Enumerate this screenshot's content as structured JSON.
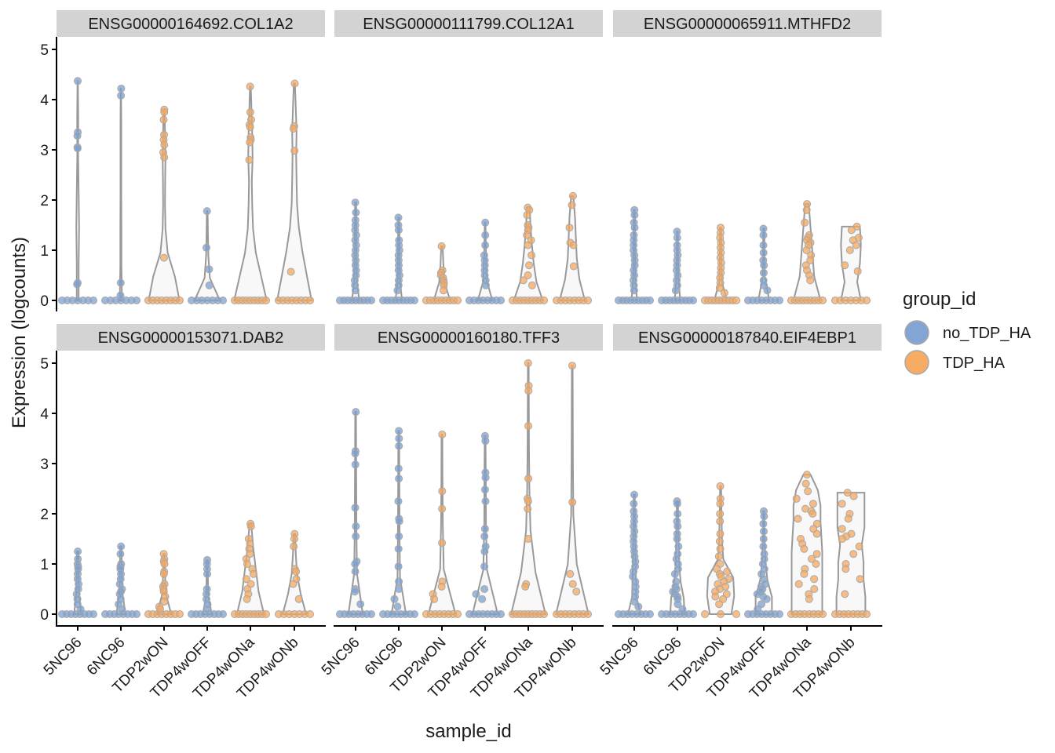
{
  "chart_data": {
    "type": "violin",
    "ylabel": "Expression (logcounts)",
    "xlabel": "sample_id",
    "ylim": [
      0,
      5
    ],
    "y_ticks": [
      0,
      1,
      2,
      3,
      4,
      5
    ],
    "categories": [
      "5NC96",
      "6NC96",
      "TDP2wON",
      "TDP4wOFF",
      "TDP4wONa",
      "TDP4wONb"
    ],
    "sample_group": [
      "no_TDP_HA",
      "no_TDP_HA",
      "TDP_HA",
      "no_TDP_HA",
      "TDP_HA",
      "TDP_HA"
    ],
    "legend": {
      "title": "group_id",
      "items": [
        {
          "label": "no_TDP_HA",
          "color": "#7ba0d1"
        },
        {
          "label": "TDP_HA",
          "color": "#f7a85c"
        }
      ]
    },
    "panels": [
      {
        "title": "ENSG00000164692.COL1A2",
        "nonzero": [
          [
            4.37,
            3.35,
            3.28,
            3.05,
            3.03,
            0.35,
            0.32
          ],
          [
            4.22,
            4.08,
            0.35,
            0.1
          ],
          [
            3.8,
            3.75,
            3.6,
            3.3,
            3.2,
            3.1,
            2.95,
            2.85,
            0.85
          ],
          [
            1.78,
            1.05,
            0.62,
            0.3
          ],
          [
            4.26,
            3.75,
            3.6,
            3.5,
            3.45,
            3.25,
            3.2,
            3.15,
            2.8
          ],
          [
            4.32,
            3.47,
            3.42,
            2.98,
            0.57
          ]
        ],
        "zero_counts": [
          7,
          7,
          8,
          7,
          9,
          8
        ],
        "widths": [
          [
            0.05,
            0.05,
            0.08,
            0.05,
            0.02,
            0.03,
            0.01
          ],
          [
            0.06,
            0.03,
            0.03,
            0.02,
            0.02,
            0.02,
            0.01
          ],
          [
            0.85,
            0.6,
            0.2,
            0.08,
            0.05,
            0.06,
            0.08,
            0.05,
            0.03
          ],
          [
            0.7,
            0.15,
            0.06,
            0.04,
            0.02
          ],
          [
            0.9,
            0.6,
            0.3,
            0.15,
            0.1,
            0.08,
            0.12,
            0.1,
            0.06,
            0.02
          ],
          [
            0.95,
            0.7,
            0.45,
            0.25,
            0.15,
            0.12,
            0.1,
            0.12,
            0.08,
            0.03
          ]
        ],
        "tops": [
          4.37,
          4.22,
          3.8,
          1.78,
          4.26,
          4.32
        ]
      },
      {
        "title": "ENSG00000111799.COL12A1",
        "nonzero": [
          [
            1.95,
            1.75,
            1.6,
            1.5,
            1.4,
            1.3,
            1.2,
            1.1,
            1.0,
            0.9,
            0.8,
            0.7,
            0.6,
            0.5,
            0.4,
            0.3,
            0.2
          ],
          [
            1.65,
            1.5,
            1.4,
            1.2,
            1.1,
            1.0,
            0.9,
            0.8,
            0.7,
            0.6,
            0.5,
            0.4,
            0.3,
            0.2
          ],
          [
            1.08,
            0.6,
            0.55,
            0.5,
            0.45,
            0.4,
            0.35,
            0.3,
            0.2
          ],
          [
            1.55,
            1.3,
            1.1,
            0.9,
            0.8,
            0.7,
            0.6,
            0.5,
            0.4,
            0.3
          ],
          [
            1.85,
            1.8,
            1.7,
            1.5,
            1.45,
            1.4,
            1.3,
            1.2,
            1.1,
            0.9,
            0.7,
            0.5,
            0.4,
            0.3
          ],
          [
            2.08,
            1.9,
            1.45,
            1.15,
            1.1,
            0.68
          ]
        ],
        "zero_counts": [
          9,
          9,
          9,
          8,
          9,
          8
        ],
        "widths": [
          [
            0.2,
            0.08,
            0.06,
            0.05,
            0.04,
            0.03
          ],
          [
            0.18,
            0.07,
            0.05,
            0.04,
            0.03
          ],
          [
            0.45,
            0.15,
            0.08,
            0.04
          ],
          [
            0.4,
            0.1,
            0.06,
            0.04,
            0.02
          ],
          [
            0.8,
            0.45,
            0.3,
            0.2,
            0.12,
            0.08
          ],
          [
            0.7,
            0.4,
            0.25,
            0.2,
            0.15,
            0.06
          ]
        ],
        "tops": [
          1.95,
          1.65,
          1.08,
          1.55,
          1.85,
          2.08
        ]
      },
      {
        "title": "ENSG00000065911.MTHFD2",
        "nonzero": [
          [
            1.8,
            1.7,
            1.55,
            1.45,
            1.3,
            1.2,
            1.1,
            1.0,
            0.9,
            0.8,
            0.7,
            0.6,
            0.5,
            0.4,
            0.3,
            0.2
          ],
          [
            1.37,
            1.25,
            1.1,
            1.0,
            0.9,
            0.8,
            0.7,
            0.6,
            0.5,
            0.4,
            0.3,
            0.2
          ],
          [
            1.45,
            1.35,
            1.25,
            1.15,
            1.05,
            0.95,
            0.85,
            0.75,
            0.65,
            0.55,
            0.45,
            0.35,
            0.25,
            0.15
          ],
          [
            1.43,
            1.3,
            1.1,
            0.95,
            0.8,
            0.7,
            0.55,
            0.4,
            0.3,
            0.2
          ],
          [
            1.92,
            1.8,
            1.55,
            1.3,
            1.25,
            1.2,
            1.15,
            1.1,
            1.0,
            0.9,
            0.8,
            0.7,
            0.6,
            0.5,
            0.4
          ],
          [
            1.47,
            1.4,
            1.25,
            1.2,
            1.1,
            1.0,
            0.7,
            0.58
          ]
        ],
        "zero_counts": [
          9,
          9,
          10,
          8,
          9,
          7
        ],
        "widths": [
          [
            0.15,
            0.06,
            0.05,
            0.04,
            0.03
          ],
          [
            0.15,
            0.06,
            0.04,
            0.03
          ],
          [
            0.35,
            0.08,
            0.05,
            0.04,
            0.03
          ],
          [
            0.3,
            0.06,
            0.04,
            0.03
          ],
          [
            0.75,
            0.4,
            0.3,
            0.2,
            0.1
          ],
          [
            0.55,
            0.35,
            0.5,
            0.55,
            0.5
          ]
        ],
        "tops": [
          1.8,
          1.37,
          1.45,
          1.43,
          1.92,
          1.47
        ]
      },
      {
        "title": "ENSG00000153071.DAB2",
        "nonzero": [
          [
            1.25,
            1.1,
            1.0,
            0.95,
            0.9,
            0.8,
            0.7,
            0.6,
            0.5,
            0.4,
            0.3,
            0.2,
            0.1
          ],
          [
            1.35,
            1.2,
            1.0,
            0.95,
            0.9,
            0.8,
            0.7,
            0.6,
            0.5,
            0.45,
            0.4,
            0.3,
            0.2,
            0.1
          ],
          [
            1.2,
            1.1,
            1.05,
            1.0,
            0.85,
            0.8,
            0.6,
            0.55,
            0.5,
            0.45,
            0.35,
            0.25,
            0.15,
            0.1
          ],
          [
            1.08,
            1.0,
            0.9,
            0.8,
            0.5,
            0.4,
            0.3,
            0.2,
            0.1
          ],
          [
            1.8,
            1.75,
            1.5,
            1.4,
            1.3,
            1.2,
            1.1,
            1.0,
            0.9,
            0.8,
            0.7,
            0.6,
            0.5,
            0.4,
            0.3
          ],
          [
            1.6,
            1.5,
            1.35,
            0.9,
            0.85,
            0.7,
            0.6,
            0.3
          ]
        ],
        "zero_counts": [
          8,
          8,
          8,
          8,
          9,
          7
        ],
        "widths": [
          [
            0.2,
            0.08,
            0.05,
            0.04
          ],
          [
            0.25,
            0.08,
            0.05,
            0.04
          ],
          [
            0.4,
            0.1,
            0.05,
            0.04
          ],
          [
            0.25,
            0.06,
            0.04,
            0.03
          ],
          [
            0.75,
            0.45,
            0.3,
            0.15,
            0.05
          ],
          [
            0.65,
            0.35,
            0.15,
            0.08,
            0.04
          ]
        ],
        "tops": [
          1.25,
          1.35,
          1.2,
          1.08,
          1.8,
          1.6
        ]
      },
      {
        "title": "ENSG00000160180.TFF3",
        "nonzero": [
          [
            4.03,
            3.25,
            3.2,
            2.98,
            2.12,
            1.75,
            1.55,
            1.05,
            1.0,
            0.85,
            0.5,
            0.45,
            0.2
          ],
          [
            3.65,
            3.5,
            3.35,
            2.9,
            2.7,
            2.25,
            1.9,
            1.85,
            1.55,
            1.3,
            0.95,
            0.65,
            0.5,
            0.3,
            0.15
          ],
          [
            3.58,
            2.45,
            2.1,
            1.42,
            0.65,
            0.55,
            0.4,
            0.3
          ],
          [
            3.55,
            3.45,
            2.82,
            2.72,
            2.48,
            2.25,
            1.7,
            1.55,
            1.35,
            1.25,
            0.95,
            0.5,
            0.4,
            0.3
          ],
          [
            5.0,
            4.55,
            4.45,
            3.75,
            2.7,
            2.3,
            2.25,
            2.1,
            1.5,
            0.6,
            0.55
          ],
          [
            4.95,
            2.23,
            0.8,
            0.6,
            0.45
          ]
        ],
        "zero_counts": [
          8,
          8,
          8,
          8,
          9,
          8
        ],
        "widths": [
          [
            0.4,
            0.08,
            0.05,
            0.04,
            0.03,
            0.02
          ],
          [
            0.4,
            0.07,
            0.05,
            0.04,
            0.03,
            0.02
          ],
          [
            0.75,
            0.1,
            0.05,
            0.03,
            0.02
          ],
          [
            0.7,
            0.1,
            0.05,
            0.04,
            0.02
          ],
          [
            0.95,
            0.4,
            0.12,
            0.06,
            0.04,
            0.03,
            0.02
          ],
          [
            0.9,
            0.25,
            0.06,
            0.04,
            0.03,
            0.02
          ]
        ],
        "tops": [
          4.03,
          3.65,
          3.58,
          3.55,
          5.0,
          4.95
        ]
      },
      {
        "title": "ENSG00000187840.EIF4EBP1",
        "nonzero": [
          [
            2.38,
            2.2,
            2.05,
            1.95,
            1.85,
            1.75,
            1.65,
            1.55,
            1.45,
            1.35,
            1.25,
            1.15,
            1.05,
            0.95,
            0.85,
            0.75,
            0.65,
            0.55,
            0.45,
            0.35,
            0.25,
            0.15
          ],
          [
            2.25,
            2.2,
            2.0,
            1.85,
            1.75,
            1.6,
            1.5,
            1.35,
            1.2,
            1.1,
            1.0,
            0.9,
            0.8,
            0.65,
            0.55,
            0.5,
            0.45,
            0.4,
            0.35,
            0.3,
            0.2,
            0.1
          ],
          [
            2.55,
            2.3,
            2.2,
            2.0,
            1.85,
            1.6,
            1.45,
            1.3,
            1.15,
            1.0,
            0.9,
            0.85,
            0.8,
            0.75,
            0.7,
            0.65,
            0.6,
            0.55,
            0.5,
            0.45,
            0.4,
            0.35,
            0.3,
            0.2
          ],
          [
            2.05,
            1.95,
            1.8,
            1.65,
            1.5,
            1.35,
            1.2,
            1.1,
            1.0,
            0.9,
            0.8,
            0.7,
            0.6,
            0.55,
            0.5,
            0.45,
            0.4,
            0.35,
            0.3,
            0.2,
            0.1
          ],
          [
            2.78,
            2.6,
            2.45,
            2.3,
            2.2,
            2.1,
            2.05,
            2.0,
            1.9,
            1.8,
            1.7,
            1.6,
            1.5,
            1.4,
            1.3,
            1.2,
            1.1,
            1.0,
            0.9,
            0.8,
            0.7,
            0.6,
            0.5,
            0.4,
            0.3
          ],
          [
            2.42,
            2.35,
            2.2,
            2.0,
            1.9,
            1.7,
            1.6,
            1.55,
            1.5,
            1.35,
            1.2,
            1.0,
            0.9,
            0.7,
            0.4
          ]
        ],
        "zero_counts": [
          8,
          8,
          3,
          8,
          8,
          8
        ],
        "widths": [
          [
            0.35,
            0.12,
            0.1,
            0.08,
            0.06,
            0.05,
            0.04,
            0.03
          ],
          [
            0.4,
            0.35,
            0.18,
            0.1,
            0.08,
            0.06,
            0.04,
            0.03
          ],
          [
            0.6,
            0.75,
            0.7,
            0.15,
            0.08,
            0.06,
            0.04,
            0.03
          ],
          [
            0.45,
            0.45,
            0.2,
            0.1,
            0.06,
            0.04,
            0.03
          ],
          [
            0.85,
            0.85,
            0.85,
            0.85,
            0.85,
            0.8,
            0.75,
            0.75,
            0.6,
            0.2
          ],
          [
            0.8,
            0.8,
            0.7,
            0.7,
            0.6,
            0.75,
            0.75,
            0.75
          ]
        ],
        "tops": [
          2.38,
          2.25,
          2.55,
          2.05,
          2.78,
          2.42
        ]
      }
    ]
  }
}
